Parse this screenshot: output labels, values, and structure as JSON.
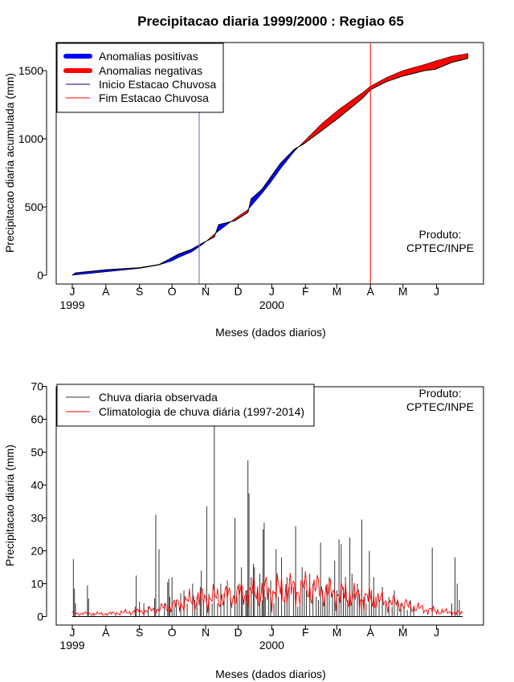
{
  "chart_data": [
    {
      "type": "area",
      "title": "Precipitacao diaria 1999/2000 : Regiao 65",
      "xlabel": "Meses (dados diarios)",
      "ylabel": "Precipitacao diaria acumulada (mm)",
      "ylim": [
        0,
        1650
      ],
      "yticks": [
        0,
        500,
        1000,
        1500
      ],
      "months": [
        "J",
        "A",
        "S",
        "O",
        "N",
        "D",
        "J",
        "F",
        "M",
        "A",
        "M",
        "J"
      ],
      "years": [
        {
          "label": "1999",
          "month_index": 0
        },
        {
          "label": "2000",
          "month_index": 6
        }
      ],
      "legend": [
        {
          "label": "Anomalias positivas",
          "color": "#0000ff",
          "style": "thick"
        },
        {
          "label": "Anomalias negativas",
          "color": "#ff0000",
          "style": "thick"
        },
        {
          "label": "Inicio Estacao Chuvosa",
          "color": "#00008b",
          "style": "thin"
        },
        {
          "label": "Fim Estacao Chuvosa",
          "color": "#ff0000",
          "style": "thin"
        }
      ],
      "onset_day": 117,
      "end_day": 275,
      "observed_cumulative": [
        {
          "day": 0,
          "value": 0
        },
        {
          "day": 3,
          "value": 17
        },
        {
          "day": 31,
          "value": 40
        },
        {
          "day": 62,
          "value": 55
        },
        {
          "day": 80,
          "value": 78
        },
        {
          "day": 90,
          "value": 120
        },
        {
          "day": 98,
          "value": 155
        },
        {
          "day": 110,
          "value": 190
        },
        {
          "day": 120,
          "value": 235
        },
        {
          "day": 131,
          "value": 280
        },
        {
          "day": 135,
          "value": 370
        },
        {
          "day": 150,
          "value": 400
        },
        {
          "day": 162,
          "value": 460
        },
        {
          "day": 165,
          "value": 560
        },
        {
          "day": 175,
          "value": 630
        },
        {
          "day": 183,
          "value": 720
        },
        {
          "day": 192,
          "value": 820
        },
        {
          "day": 205,
          "value": 925
        },
        {
          "day": 213,
          "value": 960
        },
        {
          "day": 230,
          "value": 1060
        },
        {
          "day": 245,
          "value": 1150
        },
        {
          "day": 259,
          "value": 1240
        },
        {
          "day": 268,
          "value": 1300
        },
        {
          "day": 275,
          "value": 1360
        },
        {
          "day": 290,
          "value": 1420
        },
        {
          "day": 305,
          "value": 1460
        },
        {
          "day": 325,
          "value": 1500
        },
        {
          "day": 335,
          "value": 1510
        },
        {
          "day": 350,
          "value": 1560
        },
        {
          "day": 365,
          "value": 1590
        }
      ],
      "climatology_cumulative": [
        {
          "day": 0,
          "value": 0
        },
        {
          "day": 31,
          "value": 25
        },
        {
          "day": 62,
          "value": 50
        },
        {
          "day": 80,
          "value": 75
        },
        {
          "day": 92,
          "value": 105
        },
        {
          "day": 98,
          "value": 130
        },
        {
          "day": 110,
          "value": 170
        },
        {
          "day": 120,
          "value": 225
        },
        {
          "day": 131,
          "value": 300
        },
        {
          "day": 150,
          "value": 415
        },
        {
          "day": 162,
          "value": 480
        },
        {
          "day": 175,
          "value": 600
        },
        {
          "day": 183,
          "value": 680
        },
        {
          "day": 192,
          "value": 780
        },
        {
          "day": 205,
          "value": 910
        },
        {
          "day": 213,
          "value": 975
        },
        {
          "day": 230,
          "value": 1110
        },
        {
          "day": 245,
          "value": 1210
        },
        {
          "day": 259,
          "value": 1290
        },
        {
          "day": 268,
          "value": 1340
        },
        {
          "day": 275,
          "value": 1385
        },
        {
          "day": 290,
          "value": 1450
        },
        {
          "day": 305,
          "value": 1500
        },
        {
          "day": 325,
          "value": 1545
        },
        {
          "day": 335,
          "value": 1570
        },
        {
          "day": 350,
          "value": 1605
        },
        {
          "day": 365,
          "value": 1625
        }
      ],
      "annotation": {
        "line1": "Produto:",
        "line2": "CPTEC/INPE"
      }
    },
    {
      "type": "bar",
      "title": "",
      "xlabel": "Meses (dados diarios)",
      "ylabel": "Precipitacao diaria (mm)",
      "ylim": [
        0,
        70
      ],
      "yticks": [
        0,
        10,
        20,
        30,
        40,
        50,
        60,
        70
      ],
      "months": [
        "J",
        "A",
        "S",
        "O",
        "N",
        "D",
        "J",
        "F",
        "M",
        "A",
        "M",
        "J"
      ],
      "years": [
        {
          "label": "1999",
          "month_index": 0
        },
        {
          "label": "2000",
          "month_index": 6
        }
      ],
      "legend": [
        {
          "label": "Chuva diaria observada",
          "color": "#333333"
        },
        {
          "label": "Climatologia de chuva diária (1997-2014)",
          "color": "#ff0000"
        }
      ],
      "annotation": {
        "line1": "Produto:",
        "line2": "CPTEC/INPE"
      },
      "daily_observed": [
        {
          "day": 1,
          "value": 17.5
        },
        {
          "day": 2,
          "value": 8.5
        },
        {
          "day": 3,
          "value": 4
        },
        {
          "day": 14,
          "value": 9.5
        },
        {
          "day": 15,
          "value": 5.5
        },
        {
          "day": 20,
          "value": 1
        },
        {
          "day": 58,
          "value": 3
        },
        {
          "day": 59,
          "value": 12.5
        },
        {
          "day": 62,
          "value": 4.5
        },
        {
          "day": 66,
          "value": 4
        },
        {
          "day": 70,
          "value": 3
        },
        {
          "day": 76,
          "value": 5.5
        },
        {
          "day": 77,
          "value": 31
        },
        {
          "day": 80,
          "value": 20.5
        },
        {
          "day": 85,
          "value": 4
        },
        {
          "day": 88,
          "value": 10.5
        },
        {
          "day": 89,
          "value": 11.5
        },
        {
          "day": 90,
          "value": 6
        },
        {
          "day": 92,
          "value": 12
        },
        {
          "day": 94,
          "value": 3
        },
        {
          "day": 96,
          "value": 5
        },
        {
          "day": 100,
          "value": 7
        },
        {
          "day": 103,
          "value": 8
        },
        {
          "day": 106,
          "value": 4
        },
        {
          "day": 111,
          "value": 10
        },
        {
          "day": 113,
          "value": 5
        },
        {
          "day": 115,
          "value": 6
        },
        {
          "day": 118,
          "value": 9
        },
        {
          "day": 119,
          "value": 14
        },
        {
          "day": 121,
          "value": 4
        },
        {
          "day": 124,
          "value": 33.5
        },
        {
          "day": 126,
          "value": 7
        },
        {
          "day": 129,
          "value": 4
        },
        {
          "day": 131,
          "value": 59
        },
        {
          "day": 134,
          "value": 4
        },
        {
          "day": 137,
          "value": 10
        },
        {
          "day": 140,
          "value": 7
        },
        {
          "day": 143,
          "value": 11
        },
        {
          "day": 146,
          "value": 6
        },
        {
          "day": 150,
          "value": 30
        },
        {
          "day": 152,
          "value": 6
        },
        {
          "day": 154,
          "value": 10
        },
        {
          "day": 156,
          "value": 15
        },
        {
          "day": 157,
          "value": 9
        },
        {
          "day": 160,
          "value": 8
        },
        {
          "day": 161,
          "value": 8
        },
        {
          "day": 162,
          "value": 47.5
        },
        {
          "day": 163,
          "value": 37.5
        },
        {
          "day": 165,
          "value": 12
        },
        {
          "day": 167,
          "value": 16
        },
        {
          "day": 168,
          "value": 15
        },
        {
          "day": 171,
          "value": 8
        },
        {
          "day": 173,
          "value": 13
        },
        {
          "day": 175,
          "value": 5
        },
        {
          "day": 176,
          "value": 26.5
        },
        {
          "day": 177,
          "value": 28.5
        },
        {
          "day": 178,
          "value": 6
        },
        {
          "day": 181,
          "value": 8
        },
        {
          "day": 183,
          "value": 11
        },
        {
          "day": 186,
          "value": 4
        },
        {
          "day": 188,
          "value": 20.5
        },
        {
          "day": 190,
          "value": 6
        },
        {
          "day": 193,
          "value": 18
        },
        {
          "day": 196,
          "value": 6
        },
        {
          "day": 198,
          "value": 12
        },
        {
          "day": 200,
          "value": 10
        },
        {
          "day": 204,
          "value": 9
        },
        {
          "day": 206,
          "value": 27.5
        },
        {
          "day": 208,
          "value": 3
        },
        {
          "day": 210,
          "value": 4
        },
        {
          "day": 212,
          "value": 15
        },
        {
          "day": 214,
          "value": 11
        },
        {
          "day": 216,
          "value": 8
        },
        {
          "day": 219,
          "value": 13
        },
        {
          "day": 222,
          "value": 10
        },
        {
          "day": 225,
          "value": 6
        },
        {
          "day": 227,
          "value": 5
        },
        {
          "day": 229,
          "value": 22.5
        },
        {
          "day": 231,
          "value": 8
        },
        {
          "day": 233,
          "value": 6
        },
        {
          "day": 235,
          "value": 10
        },
        {
          "day": 237,
          "value": 12
        },
        {
          "day": 240,
          "value": 7
        },
        {
          "day": 242,
          "value": 17
        },
        {
          "day": 244,
          "value": 8
        },
        {
          "day": 246,
          "value": 23.5
        },
        {
          "day": 248,
          "value": 22
        },
        {
          "day": 250,
          "value": 9
        },
        {
          "day": 252,
          "value": 12
        },
        {
          "day": 254,
          "value": 5
        },
        {
          "day": 256,
          "value": 24
        },
        {
          "day": 258,
          "value": 13
        },
        {
          "day": 260,
          "value": 7
        },
        {
          "day": 263,
          "value": 10
        },
        {
          "day": 265,
          "value": 7
        },
        {
          "day": 267,
          "value": 29.5
        },
        {
          "day": 269,
          "value": 6
        },
        {
          "day": 271,
          "value": 4
        },
        {
          "day": 274,
          "value": 20
        },
        {
          "day": 276,
          "value": 8
        },
        {
          "day": 278,
          "value": 12
        },
        {
          "day": 280,
          "value": 6
        },
        {
          "day": 283,
          "value": 5
        },
        {
          "day": 286,
          "value": 9
        },
        {
          "day": 289,
          "value": 4
        },
        {
          "day": 292,
          "value": 6
        },
        {
          "day": 295,
          "value": 3
        },
        {
          "day": 297,
          "value": 8
        },
        {
          "day": 300,
          "value": 5
        },
        {
          "day": 303,
          "value": 4
        },
        {
          "day": 306,
          "value": 3
        },
        {
          "day": 309,
          "value": 2
        },
        {
          "day": 312,
          "value": 5
        },
        {
          "day": 315,
          "value": 3
        },
        {
          "day": 332,
          "value": 21
        },
        {
          "day": 350,
          "value": 4
        },
        {
          "day": 353,
          "value": 18
        },
        {
          "day": 355,
          "value": 10
        },
        {
          "day": 357,
          "value": 5
        }
      ],
      "daily_climatology_keypoints": [
        {
          "day": 0,
          "value": 1
        },
        {
          "day": 30,
          "value": 0.8
        },
        {
          "day": 60,
          "value": 1.5
        },
        {
          "day": 75,
          "value": 2
        },
        {
          "day": 90,
          "value": 3
        },
        {
          "day": 105,
          "value": 4.5
        },
        {
          "day": 120,
          "value": 5.5
        },
        {
          "day": 140,
          "value": 6
        },
        {
          "day": 160,
          "value": 7
        },
        {
          "day": 180,
          "value": 7.5
        },
        {
          "day": 200,
          "value": 8
        },
        {
          "day": 220,
          "value": 8.5
        },
        {
          "day": 240,
          "value": 7
        },
        {
          "day": 260,
          "value": 6
        },
        {
          "day": 280,
          "value": 5
        },
        {
          "day": 300,
          "value": 4
        },
        {
          "day": 320,
          "value": 2.5
        },
        {
          "day": 340,
          "value": 1.5
        },
        {
          "day": 365,
          "value": 1
        }
      ]
    }
  ]
}
